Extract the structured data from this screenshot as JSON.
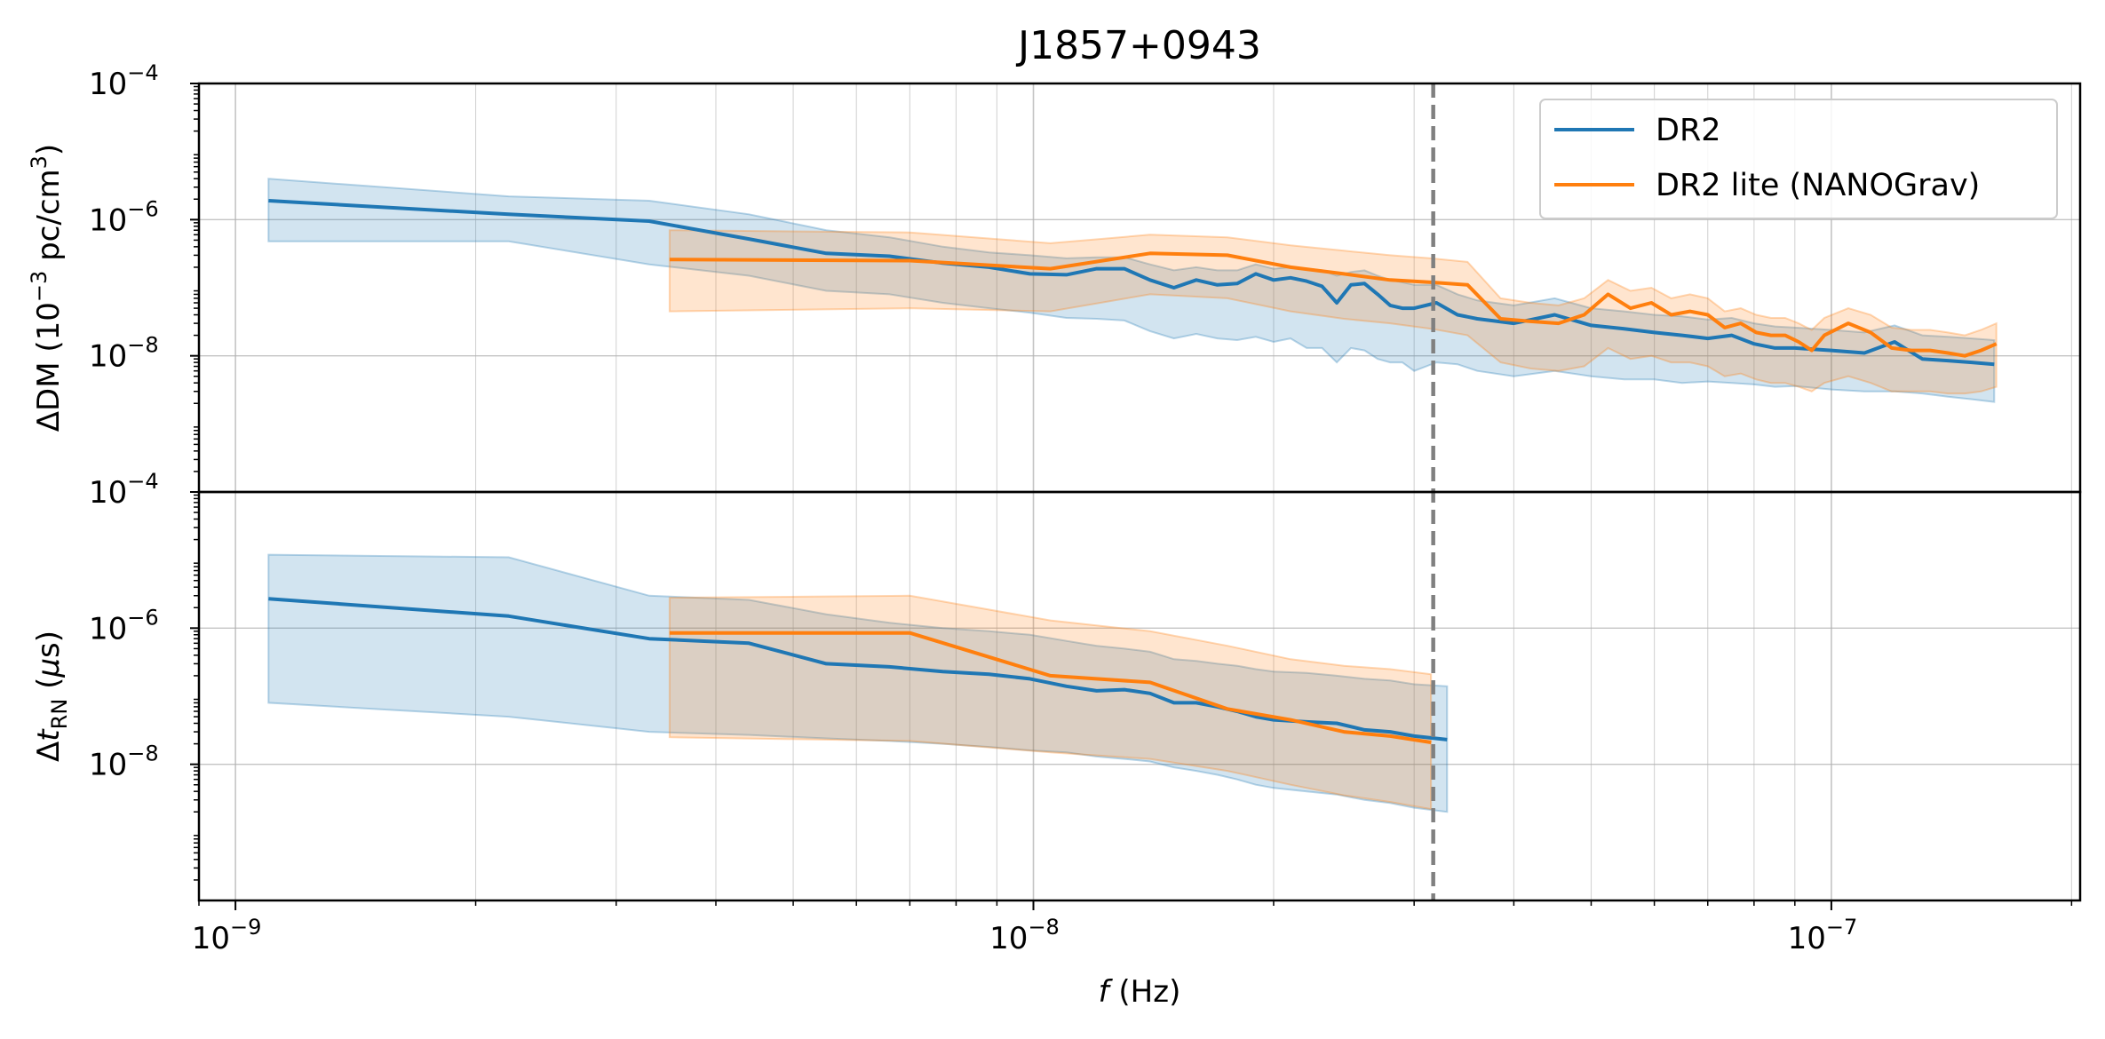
{
  "chart_data": {
    "type": "line",
    "title": "J1857+0943",
    "xlabel": {
      "italic": "f",
      "rest": " (Hz)"
    },
    "x_scale": "log",
    "xlim": [
      9e-10,
      2.05e-07
    ],
    "x_ticks": [
      {
        "value": 1e-09,
        "base": "10",
        "exp": "−9"
      },
      {
        "value": 1e-08,
        "base": "10",
        "exp": "−8"
      },
      {
        "value": 1e-07,
        "base": "10",
        "exp": "−7"
      }
    ],
    "vline": {
      "x": 3.17e-08,
      "color": "#808080",
      "style": "dashed"
    },
    "grid": true,
    "colors": {
      "DR2": "#1f77b4",
      "DR2 lite (NANOGrav)": "#ff7f0e"
    },
    "legend": {
      "placement": "top-right",
      "entries": [
        "DR2",
        "DR2 lite (NANOGrav)"
      ]
    },
    "panels": [
      {
        "id": "dm",
        "ylabel": {
          "p1": "ΔDM (10",
          "sup": "−3",
          "p2": " pc/cm",
          "sup2": "3",
          "p3": ")"
        },
        "y_scale": "log",
        "ylim": [
          1e-10,
          0.0001
        ],
        "y_ticks": [
          {
            "value": 0.0001,
            "base": "10",
            "exp": "−4"
          },
          {
            "value": 1e-06,
            "base": "10",
            "exp": "−6"
          },
          {
            "value": 1e-08,
            "base": "10",
            "exp": "−8"
          }
        ],
        "series": [
          {
            "name": "DR2",
            "x": [
              1.1e-09,
              2.2e-09,
              3.3e-09,
              4.4e-09,
              5.5e-09,
              6.6e-09,
              7.7e-09,
              8.8e-09,
              9.9e-09,
              1.1e-08,
              1.2e-08,
              1.3e-08,
              1.4e-08,
              1.5e-08,
              1.6e-08,
              1.7e-08,
              1.8e-08,
              1.9e-08,
              2e-08,
              2.1e-08,
              2.2e-08,
              2.3e-08,
              2.4e-08,
              2.5e-08,
              2.6e-08,
              2.7e-08,
              2.8e-08,
              2.9e-08,
              3e-08,
              3.2e-08,
              3.4e-08,
              3.6e-08,
              4e-08,
              4.5e-08,
              5e-08,
              5.5e-08,
              6e-08,
              6.5e-08,
              7e-08,
              7.5e-08,
              8e-08,
              8.5e-08,
              9e-08,
              1e-07,
              1.1e-07,
              1.2e-07,
              1.3e-07,
              1.4e-07,
              1.5e-07,
              1.6e-07
            ],
            "y": [
              1.9e-06,
              1.2e-06,
              9.5e-07,
              5.2e-07,
              3.2e-07,
              2.9e-07,
              2.3e-07,
              2e-07,
              1.6e-07,
              1.55e-07,
              1.9e-07,
              1.9e-07,
              1.3e-07,
              1e-07,
              1.3e-07,
              1.1e-07,
              1.15e-07,
              1.6e-07,
              1.3e-07,
              1.4e-07,
              1.25e-07,
              1.05e-07,
              6e-08,
              1.1e-07,
              1.15e-07,
              8e-08,
              5.5e-08,
              5e-08,
              5e-08,
              6e-08,
              4e-08,
              3.5e-08,
              3e-08,
              4e-08,
              2.8e-08,
              2.5e-08,
              2.2e-08,
              2e-08,
              1.8e-08,
              2e-08,
              1.5e-08,
              1.3e-08,
              1.3e-08,
              1.2e-08,
              1.1e-08,
              1.6e-08,
              9e-09,
              8.5e-09,
              8e-09,
              7.5e-09
            ],
            "lower": [
              4.8e-07,
              4.8e-07,
              2.2e-07,
              1.5e-07,
              9e-08,
              8e-08,
              6e-08,
              5e-08,
              4.3e-08,
              3.6e-08,
              3.5e-08,
              3.3e-08,
              2.3e-08,
              1.8e-08,
              2.1e-08,
              1.8e-08,
              1.7e-08,
              1.9e-08,
              1.6e-08,
              1.8e-08,
              1.3e-08,
              1.3e-08,
              8e-09,
              1.3e-08,
              1.2e-08,
              9e-09,
              8e-09,
              8e-09,
              6e-09,
              8e-09,
              7.5e-09,
              6e-09,
              5e-09,
              6e-09,
              5e-09,
              4.5e-09,
              4.5e-09,
              4e-09,
              4.2e-09,
              4e-09,
              3.8e-09,
              3.5e-09,
              3.6e-09,
              3.2e-09,
              3e-09,
              3e-09,
              2.8e-09,
              2.5e-09,
              2.3e-09,
              2.1e-09
            ],
            "upper": [
              4e-06,
              2.2e-06,
              1.9e-06,
              1.2e-06,
              7e-07,
              5.5e-07,
              4e-07,
              3.3e-07,
              3e-07,
              2.7e-07,
              2.8e-07,
              2.8e-07,
              2.2e-07,
              1.8e-07,
              2e-07,
              1.8e-07,
              1.8e-07,
              2.2e-07,
              1.9e-07,
              2e-07,
              1.9e-07,
              1.8e-07,
              1.5e-07,
              1.7e-07,
              1.8e-07,
              1.5e-07,
              1.3e-07,
              1.2e-07,
              1.1e-07,
              1.1e-07,
              8e-08,
              6.5e-08,
              5.5e-08,
              7e-08,
              5e-08,
              4.5e-08,
              4e-08,
              3.8e-08,
              3.4e-08,
              3.6e-08,
              3e-08,
              2.7e-08,
              2.6e-08,
              2.4e-08,
              2.2e-08,
              2.8e-08,
              2e-08,
              1.9e-08,
              1.8e-08,
              1.7e-08
            ]
          },
          {
            "name": "DR2 lite (NANOGrav)",
            "x": [
              3.5e-09,
              7e-09,
              1.05e-08,
              1.4e-08,
              1.75e-08,
              2.1e-08,
              2.45e-08,
              2.8e-08,
              3.15e-08,
              3.5e-08,
              3.85e-08,
              4.2e-08,
              4.55e-08,
              4.9e-08,
              5.25e-08,
              5.6e-08,
              5.95e-08,
              6.3e-08,
              6.65e-08,
              7e-08,
              7.35e-08,
              7.7e-08,
              8.05e-08,
              8.4e-08,
              8.75e-08,
              9.1e-08,
              9.45e-08,
              9.8e-08,
              1.05e-07,
              1.12e-07,
              1.19e-07,
              1.26e-07,
              1.33e-07,
              1.4e-07,
              1.47e-07,
              1.54e-07,
              1.61e-07
            ],
            "y": [
              2.6e-07,
              2.5e-07,
              1.9e-07,
              3.2e-07,
              3e-07,
              2e-07,
              1.6e-07,
              1.3e-07,
              1.2e-07,
              1.1e-07,
              3.5e-08,
              3.2e-08,
              3e-08,
              4e-08,
              8e-08,
              5e-08,
              6e-08,
              4e-08,
              4.5e-08,
              4e-08,
              2.6e-08,
              3e-08,
              2.2e-08,
              2e-08,
              2e-08,
              1.6e-08,
              1.2e-08,
              2e-08,
              3e-08,
              2.2e-08,
              1.3e-08,
              1.2e-08,
              1.2e-08,
              1.1e-08,
              1e-08,
              1.2e-08,
              1.5e-08
            ],
            "lower": [
              4.5e-08,
              5e-08,
              4.5e-08,
              8e-08,
              7e-08,
              4.5e-08,
              3.5e-08,
              3e-08,
              2.5e-08,
              2e-08,
              8e-09,
              6.5e-09,
              6e-09,
              7e-09,
              1.3e-08,
              9e-09,
              1e-08,
              8e-09,
              8e-09,
              7e-09,
              5e-09,
              5.5e-09,
              4.5e-09,
              4e-09,
              4e-09,
              3.5e-09,
              3e-09,
              4e-09,
              5e-09,
              4e-09,
              3e-09,
              3e-09,
              3e-09,
              2.8e-09,
              2.8e-09,
              3e-09,
              3.5e-09
            ],
            "upper": [
              7e-07,
              6.5e-07,
              4.5e-07,
              6e-07,
              5.5e-07,
              4.2e-07,
              3.5e-07,
              3e-07,
              2.7e-07,
              2.4e-07,
              7e-08,
              6e-08,
              5.5e-08,
              7e-08,
              1.3e-07,
              9e-08,
              1e-07,
              7e-08,
              8e-08,
              7e-08,
              4.5e-08,
              5e-08,
              4e-08,
              3.6e-08,
              3.6e-08,
              3e-08,
              2.4e-08,
              3.6e-08,
              5e-08,
              4e-08,
              2.6e-08,
              2.4e-08,
              2.4e-08,
              2.2e-08,
              2e-08,
              2.4e-08,
              3e-08
            ]
          }
        ]
      },
      {
        "id": "rn",
        "ylabel": {
          "p1": "Δ",
          "italic": "t",
          "sub": "RN",
          "p2": " (",
          "mu": "μ",
          "p3": "s)"
        },
        "y_scale": "log",
        "ylim": [
          1e-10,
          0.0001
        ],
        "y_ticks": [
          {
            "value": 0.0001,
            "base": "10",
            "exp": "−4"
          },
          {
            "value": 1e-06,
            "base": "10",
            "exp": "−6"
          },
          {
            "value": 1e-08,
            "base": "10",
            "exp": "−8"
          }
        ],
        "series": [
          {
            "name": "DR2",
            "x": [
              1.1e-09,
              2.2e-09,
              3.3e-09,
              4.4e-09,
              5.5e-09,
              6.6e-09,
              7.7e-09,
              8.8e-09,
              9.9e-09,
              1.1e-08,
              1.2e-08,
              1.3e-08,
              1.4e-08,
              1.5e-08,
              1.6e-08,
              1.7e-08,
              1.8e-08,
              1.9e-08,
              2e-08,
              2.2e-08,
              2.4e-08,
              2.6e-08,
              2.8e-08,
              3e-08,
              3.3e-08
            ],
            "y": [
              2.7e-06,
              1.5e-06,
              7e-07,
              6e-07,
              3e-07,
              2.7e-07,
              2.3e-07,
              2.1e-07,
              1.8e-07,
              1.4e-07,
              1.2e-07,
              1.25e-07,
              1.1e-07,
              8e-08,
              8e-08,
              7e-08,
              6e-08,
              5e-08,
              4.5e-08,
              4.2e-08,
              4e-08,
              3.2e-08,
              3e-08,
              2.6e-08,
              2.3e-08
            ],
            "lower": [
              8e-08,
              5e-08,
              3e-08,
              2.7e-08,
              2.4e-08,
              2.2e-08,
              2e-08,
              1.8e-08,
              1.6e-08,
              1.5e-08,
              1.3e-08,
              1.2e-08,
              1.1e-08,
              9e-09,
              8e-09,
              7e-09,
              6e-09,
              5e-09,
              4.5e-09,
              4e-09,
              3.6e-09,
              3e-09,
              2.7e-09,
              2.3e-09,
              2e-09
            ],
            "upper": [
              1.2e-05,
              1.1e-05,
              3e-06,
              2.6e-06,
              1.6e-06,
              1.2e-06,
              1e-06,
              9e-07,
              8e-07,
              6.5e-07,
              5.5e-07,
              5e-07,
              4.5e-07,
              3.5e-07,
              3.3e-07,
              3e-07,
              2.8e-07,
              2.5e-07,
              2.3e-07,
              2.2e-07,
              2e-07,
              1.8e-07,
              1.7e-07,
              1.5e-07,
              1.4e-07
            ]
          },
          {
            "name": "DR2 lite (NANOGrav)",
            "x": [
              3.5e-09,
              7e-09,
              1.05e-08,
              1.4e-08,
              1.75e-08,
              2.1e-08,
              2.45e-08,
              2.8e-08,
              3.15e-08
            ],
            "y": [
              8.5e-07,
              8.5e-07,
              2e-07,
              1.6e-07,
              6.5e-08,
              4.5e-08,
              3e-08,
              2.6e-08,
              2.1e-08
            ],
            "lower": [
              2.5e-08,
              2.2e-08,
              1.5e-08,
              1.2e-08,
              8e-09,
              5e-09,
              3.5e-09,
              2.8e-09,
              2.2e-09
            ],
            "upper": [
              2.8e-06,
              3e-06,
              1.3e-06,
              9e-07,
              5.5e-07,
              3.5e-07,
              2.8e-07,
              2.5e-07,
              2.1e-07
            ]
          }
        ]
      }
    ]
  }
}
